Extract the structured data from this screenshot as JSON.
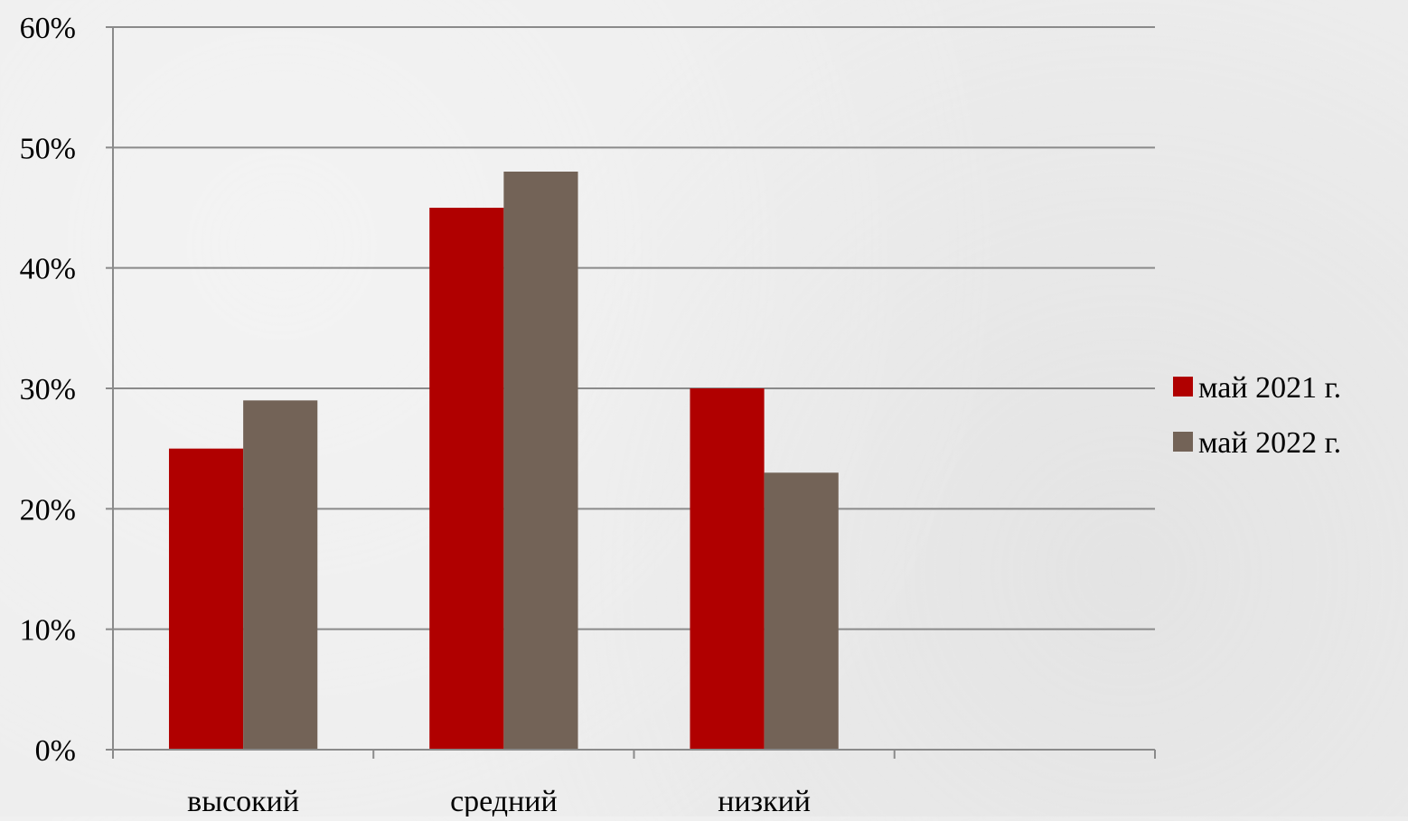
{
  "chart_data": {
    "type": "bar",
    "categories": [
      "высокий",
      "средний",
      "низкий",
      ""
    ],
    "series": [
      {
        "name": "май 2021 г.",
        "values": [
          25,
          45,
          30,
          null
        ],
        "color": "#b00000"
      },
      {
        "name": "май 2022 г.",
        "values": [
          29,
          48,
          23,
          null
        ],
        "color": "#736357"
      }
    ],
    "ylim": [
      0,
      60
    ],
    "yticks": [
      0,
      10,
      20,
      30,
      40,
      50,
      60
    ],
    "ytick_labels": [
      "0%",
      "10%",
      "20%",
      "30%",
      "40%",
      "50%",
      "60%"
    ],
    "y_unit": "%",
    "grid": true,
    "legend_position": "right",
    "title": "",
    "xlabel": "",
    "ylabel": ""
  },
  "colors": {
    "gridline": "#8a8a8a",
    "axis": "#8a8a8a",
    "background": "#ededed"
  }
}
